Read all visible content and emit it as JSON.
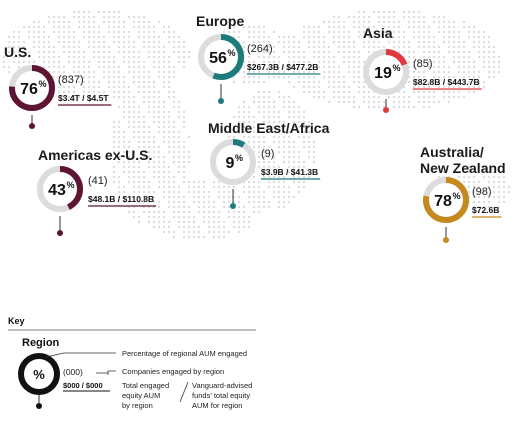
{
  "chart_data": {
    "type": "donut",
    "regions": [
      {
        "name": "U.S.",
        "pct": 76,
        "companies": "(837)",
        "aum": "$3.4T / $4.5T",
        "color": "#5e1533"
      },
      {
        "name": "Europe",
        "pct": 56,
        "companies": "(264)",
        "aum": "$267.3B / $477.2B",
        "color": "#1e7b7d"
      },
      {
        "name": "Asia",
        "pct": 19,
        "companies": "(85)",
        "aum": "$82.8B / $443.7B",
        "color": "#e03a3e"
      },
      {
        "name": "Americas ex-U.S.",
        "pct": 43,
        "companies": "(41)",
        "aum": "$48.1B / $110.8B",
        "color": "#5e1533"
      },
      {
        "name": "Middle East/Africa",
        "pct": 9,
        "companies": "(9)",
        "aum": "$3.9B / $41.3B",
        "color": "#1e7b7d"
      },
      {
        "name": "Australia/\nNew Zealand",
        "pct": 78,
        "companies": "(98)",
        "aum": "$72.6B",
        "color": "#c58a1f"
      }
    ]
  },
  "key": {
    "title": "Key",
    "region_label": "Region",
    "symbol": "%",
    "count_placeholder": "(000)",
    "aum_placeholder": "$000 / $000",
    "desc_pct": "Percentage of regional AUM engaged",
    "desc_companies": "Companies engaged by region",
    "desc_engaged": [
      "Total engaged",
      "equity AUM",
      "by region"
    ],
    "desc_vanguard": [
      "Vanguard-advised",
      "funds’ total equity",
      "AUM for region"
    ]
  }
}
